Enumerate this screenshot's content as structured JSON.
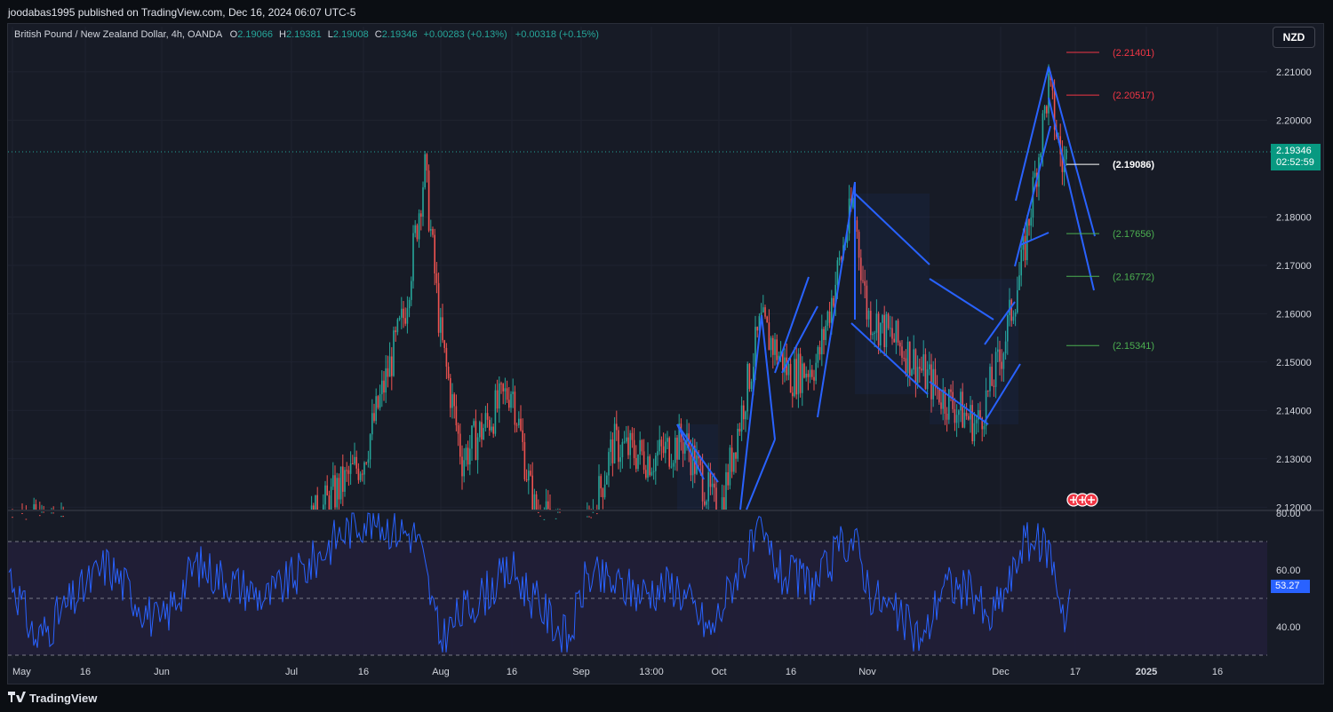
{
  "header": {
    "published": "joodabas1995 published on TradingView.com, Dec 16, 2024 06:07 UTC-5"
  },
  "legend": {
    "symbol": "British Pound / New Zealand Dollar, 4h, OANDA",
    "o_label": "O",
    "o": "2.19066",
    "h_label": "H",
    "h": "2.19381",
    "l_label": "L",
    "l": "2.19008",
    "c_label": "C",
    "c": "2.19346",
    "change": "+0.00283 (+0.13%)",
    "change2": "+0.00318 (+0.15%)"
  },
  "currency": "NZD",
  "price_tag": {
    "price": "2.19346",
    "countdown": "02:52:59"
  },
  "rsi_tag": "53.27",
  "footer": {
    "brand": "TradingView"
  },
  "colors": {
    "up": "#26a69a",
    "down": "#ef5350",
    "pattern": "#2962ff",
    "rsi": "#2962ff",
    "red_level": "#f23645",
    "green_level": "#4caf50"
  },
  "chart_data": {
    "type": "candlestick",
    "price_axis": {
      "ticks": [
        "2.21000",
        "2.20000",
        "2.18000",
        "2.17000",
        "2.16000",
        "2.15000",
        "2.14000",
        "2.13000",
        "2.12000"
      ],
      "ylim": [
        2.1195,
        2.2175
      ]
    },
    "time_axis": {
      "ticks": [
        "May",
        "16",
        "Jun",
        "Jul",
        "16",
        "Aug",
        "16",
        "Sep",
        "13:00",
        "Oct",
        "16",
        "Nov",
        "Dec",
        "17",
        "2025",
        "16"
      ]
    },
    "levels": [
      {
        "label": "(2.21401)",
        "value": 2.21401,
        "color": "red"
      },
      {
        "label": "(2.20517)",
        "value": 2.20517,
        "color": "red"
      },
      {
        "label": "(2.19086)",
        "value": 2.19086,
        "color": "white"
      },
      {
        "label": "(2.17656)",
        "value": 2.17656,
        "color": "green"
      },
      {
        "label": "(2.16772)",
        "value": 2.16772,
        "color": "green"
      },
      {
        "label": "(2.15341)",
        "value": 2.15341,
        "color": "green"
      }
    ],
    "last_price": 2.19346,
    "price_path": [
      {
        "x": "May",
        "y": 2.118
      },
      {
        "x": "16",
        "y": 2.112
      },
      {
        "x": "Jun",
        "y": 2.109
      },
      {
        "x": "Jul",
        "y": 2.112
      },
      {
        "x": "16",
        "y": 2.13
      },
      {
        "x": "Jul 20",
        "y": 2.16
      },
      {
        "x": "Jul 27",
        "y": 2.19
      },
      {
        "x": "Aug",
        "y": 2.155
      },
      {
        "x": "Aug 8",
        "y": 2.13
      },
      {
        "x": "16",
        "y": 2.145
      },
      {
        "x": "Aug 22",
        "y": 2.12
      },
      {
        "x": "Sep",
        "y": 2.11
      },
      {
        "x": "Sep 9",
        "y": 2.133
      },
      {
        "x": "13:00",
        "y": 2.13
      },
      {
        "x": "Sep 25",
        "y": 2.134
      },
      {
        "x": "Oct",
        "y": 2.118
      },
      {
        "x": "Oct 8",
        "y": 2.158
      },
      {
        "x": "16",
        "y": 2.147
      },
      {
        "x": "Oct 22",
        "y": 2.15
      },
      {
        "x": "Oct 28",
        "y": 2.183
      },
      {
        "x": "Nov",
        "y": 2.16
      },
      {
        "x": "Nov 12",
        "y": 2.152
      },
      {
        "x": "Nov 20",
        "y": 2.143
      },
      {
        "x": "Nov 26",
        "y": 2.137
      },
      {
        "x": "Dec",
        "y": 2.151
      },
      {
        "x": "Dec 6",
        "y": 2.17
      },
      {
        "x": "Dec 11",
        "y": 2.207
      },
      {
        "x": "Dec 13",
        "y": 2.19
      },
      {
        "x": "Dec 16",
        "y": 2.19346
      }
    ],
    "rsi": {
      "axis": {
        "ticks": [
          "80.00",
          "60.00",
          "40.00"
        ],
        "ylim": [
          30,
          80
        ]
      },
      "bands": [
        70,
        50,
        30
      ],
      "last": 53.27
    }
  }
}
